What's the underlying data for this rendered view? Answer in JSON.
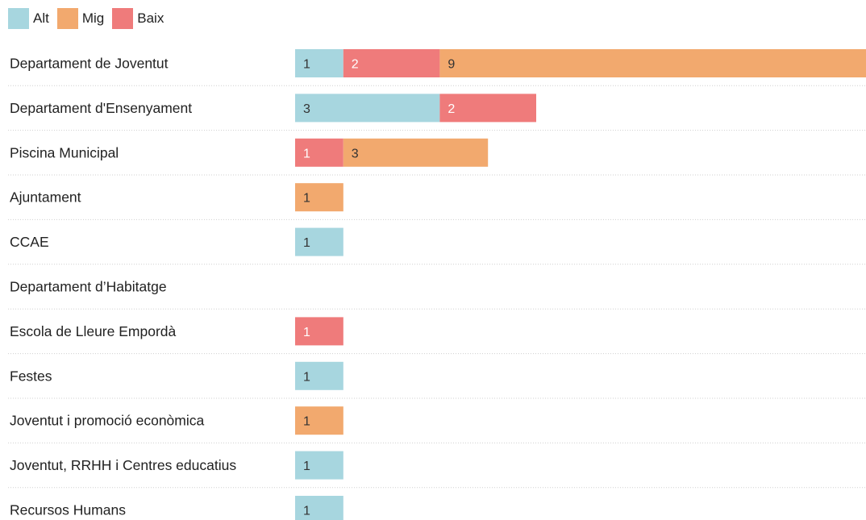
{
  "colors": {
    "Alt": "#a7d6df",
    "Mig": "#f2a96e",
    "Baix": "#ef7b7b"
  },
  "chart_data": {
    "type": "bar",
    "orientation": "horizontal",
    "stacked": true,
    "legend_position": "top-left",
    "categories": [
      "Departament de Joventut",
      "Departament d'Ensenyament",
      "Piscina Municipal",
      "Ajuntament",
      "CCAE",
      "Departament d’Habitatge",
      "Escola de Lleure Empordà",
      "Festes",
      "Joventut i promoció econòmica",
      "Joventut, RRHH i Centres educatius",
      "Recursos Humans"
    ],
    "series": [
      {
        "name": "Alt",
        "values": [
          1,
          3,
          0,
          0,
          1,
          0,
          0,
          1,
          0,
          1,
          1
        ]
      },
      {
        "name": "Baix",
        "values": [
          2,
          2,
          1,
          0,
          0,
          0,
          1,
          0,
          0,
          0,
          0
        ]
      },
      {
        "name": "Mig",
        "values": [
          9,
          0,
          3,
          1,
          0,
          0,
          0,
          0,
          1,
          0,
          0
        ]
      }
    ],
    "xlim": [
      0,
      12
    ],
    "grid": false
  }
}
